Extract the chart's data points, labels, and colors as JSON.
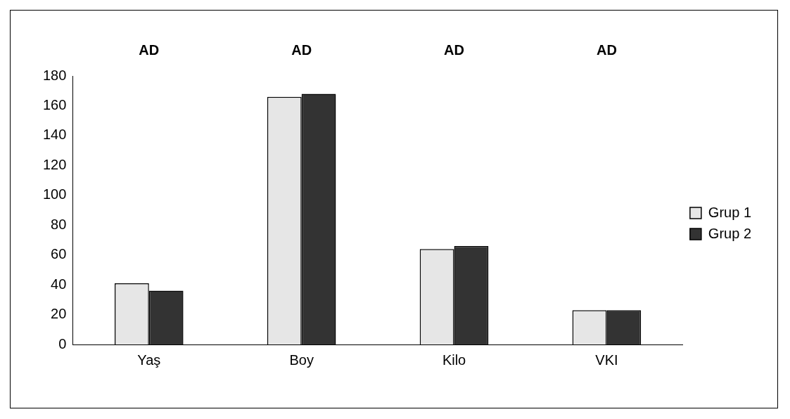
{
  "chart_data": {
    "type": "bar",
    "categories": [
      "Yaş",
      "Boy",
      "Kilo",
      "VKI"
    ],
    "series": [
      {
        "name": "Grup 1",
        "color": "#e6e6e6",
        "values": [
          41,
          166,
          64,
          23
        ]
      },
      {
        "name": "Grup 2",
        "color": "#333333",
        "values": [
          36,
          168,
          66,
          23
        ]
      }
    ],
    "ylim": [
      0,
      180
    ],
    "yticks": [
      0,
      20,
      40,
      60,
      80,
      100,
      120,
      140,
      160,
      180
    ],
    "grid": false,
    "legend": "right",
    "annotations": [
      "AD",
      "AD",
      "AD",
      "AD"
    ]
  }
}
